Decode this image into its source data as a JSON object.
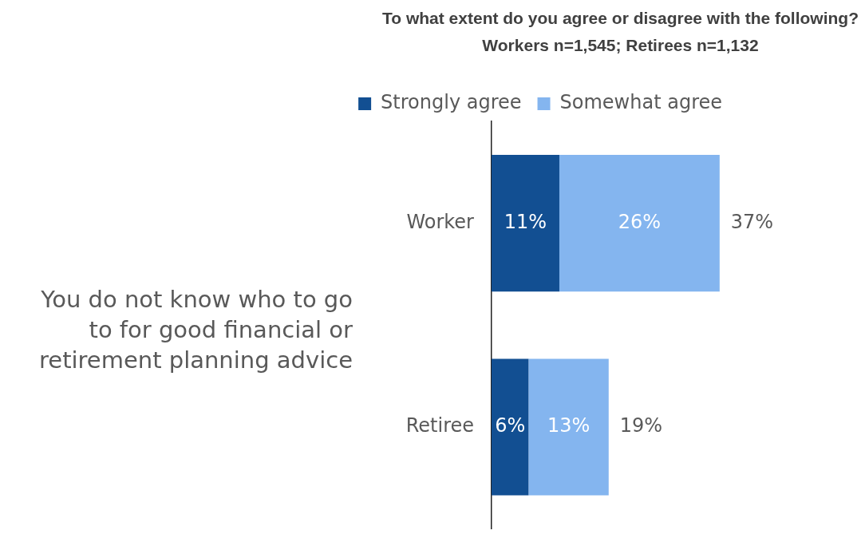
{
  "chart_data": {
    "type": "bar",
    "title": "To what extent do you agree or disagree with the following?",
    "subtitle": "Workers n=1,545; Retirees n=1,132",
    "categories": [
      "Worker",
      "Retiree"
    ],
    "orientation": "horizontal",
    "stacked": true,
    "tick_labels": "y",
    "legend": "top",
    "series": [
      {
        "name": "Strongly agree",
        "color": "#124f92",
        "values": [
          11,
          6
        ],
        "value_labels": [
          "11%",
          "6%"
        ]
      },
      {
        "name": "Somewhat agree",
        "color": "#84b5ef",
        "values": [
          26,
          13
        ],
        "value_labels": [
          "26%",
          "13%"
        ]
      }
    ],
    "totals": [
      "37%",
      "19%"
    ],
    "annotations": [
      "You do not know who to go to for good financial or retirement planning advice"
    ]
  }
}
